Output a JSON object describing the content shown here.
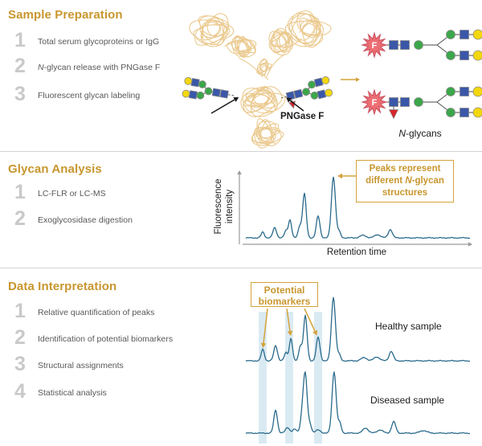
{
  "colors": {
    "heading_gold": "#C8962E",
    "callout_gold": "#D4A33C",
    "step_number_gray": "#C9C9C9",
    "step_text_gray": "#58585A",
    "trace_teal": "#2A6B8C",
    "axis_gray": "#9B9B9B",
    "highlight_band": "#DAEAF2",
    "antibody_tan": "#EBCA90",
    "glcnac_blue": "#3A57A8",
    "mannose_green": "#3CA64A",
    "galactose_yellow": "#F3D70E",
    "fucose_red": "#D8232A",
    "star_pink": "#ED6E73",
    "star_edge": "#C94F5E",
    "arrow_black": "#1A1A1A",
    "text_black": "#1A1A1A"
  },
  "sections": [
    {
      "title": "Sample Preparation",
      "steps": [
        {
          "num": "1",
          "parts": [
            {
              "t": "Total serum glycoproteins or IgG",
              "i": 0
            }
          ]
        },
        {
          "num": "2",
          "parts": [
            {
              "t": "N",
              "i": 1
            },
            {
              "t": "-glycan release with PNGase F",
              "i": 0
            }
          ]
        },
        {
          "num": "3",
          "parts": [
            {
              "t": "Fluorescent glycan labeling",
              "i": 0
            }
          ]
        }
      ]
    },
    {
      "title": "Glycan Analysis",
      "steps": [
        {
          "num": "1",
          "parts": [
            {
              "t": "LC-FLR or LC-MS",
              "i": 0
            }
          ]
        },
        {
          "num": "2",
          "parts": [
            {
              "t": "Exoglycosidase digestion",
              "i": 0
            }
          ]
        }
      ]
    },
    {
      "title": "Data Interpretation",
      "steps": [
        {
          "num": "1",
          "parts": [
            {
              "t": "Relative quantification of peaks",
              "i": 0
            }
          ]
        },
        {
          "num": "2",
          "parts": [
            {
              "t": "Identification of potential biomarkers",
              "i": 0
            }
          ]
        },
        {
          "num": "3",
          "parts": [
            {
              "t": "Structural assignments",
              "i": 0
            }
          ]
        },
        {
          "num": "4",
          "parts": [
            {
              "t": "Statistical analysis",
              "i": 0
            }
          ]
        }
      ]
    }
  ],
  "diagram": {
    "pngase_label": "PNGase F",
    "star_letter": "F",
    "nglycans_n": "N",
    "nglycans_rest": "-glycans"
  },
  "analysis": {
    "ylabel_line1": "Fluorescence",
    "ylabel_line2": "intensity",
    "xlabel": "Retention time",
    "callout_line1": "Peaks represent",
    "callout_line2_pre": "different ",
    "callout_line2_n": "N",
    "callout_line2_post": "-glycan",
    "callout_line3": "structures"
  },
  "interpretation": {
    "callout_line1": "Potential",
    "callout_line2": "biomarkers",
    "healthy_label": "Healthy sample",
    "diseased_label": "Diseased sample"
  },
  "chart_data": [
    {
      "id": "glycan_analysis_chromatogram",
      "type": "line",
      "xlabel": "Retention time",
      "ylabel": "Fluorescence intensity",
      "axes_numeric": false,
      "annotation": "Peaks represent different N-glycan structures (arrow to tallest peak)",
      "peak_format": "[retention_percent_of_axis, height_percent_of_max, width_percent]",
      "peaks": [
        [
          7.9,
          9,
          0.7
        ],
        [
          13.2,
          16,
          0.8
        ],
        [
          18.2,
          11,
          0.7
        ],
        [
          20.0,
          28,
          0.7
        ],
        [
          24.3,
          18,
          0.7
        ],
        [
          26.4,
          69,
          0.8
        ],
        [
          32.5,
          34,
          0.8
        ],
        [
          39.3,
          95,
          0.9
        ],
        [
          41.8,
          10,
          0.7
        ],
        [
          52.5,
          4,
          1.3
        ],
        [
          58.9,
          5,
          1.3
        ],
        [
          64.6,
          13,
          0.9
        ]
      ]
    },
    {
      "id": "healthy_sample_chromatogram",
      "type": "line",
      "label": "Healthy sample",
      "annotation": "Potential biomarkers (three arrows to highlighted peaks)",
      "peak_format": "[retention_percent_of_axis, height_percent_of_max, width_percent]",
      "peaks": [
        [
          7.9,
          18,
          0.7
        ],
        [
          13.6,
          24,
          0.8
        ],
        [
          18.2,
          13,
          0.7
        ],
        [
          20.4,
          35,
          0.7
        ],
        [
          24.6,
          23,
          0.7
        ],
        [
          26.8,
          70,
          0.8
        ],
        [
          32.5,
          37,
          0.8
        ],
        [
          39.3,
          99,
          0.9
        ],
        [
          41.8,
          10,
          0.7
        ],
        [
          52.9,
          5,
          1.3
        ],
        [
          58.6,
          6,
          1.3
        ],
        [
          65.0,
          15,
          0.9
        ]
      ],
      "highlight_bands_percent": [
        [
          6.1,
          9.6
        ],
        [
          17.9,
          21.4
        ],
        [
          30.7,
          34.3
        ]
      ],
      "biomarker_arrow_targets_percent": [
        7.9,
        20.4,
        32.5
      ]
    },
    {
      "id": "diseased_sample_chromatogram",
      "type": "line",
      "label": "Diseased sample",
      "peak_format": "[retention_percent_of_axis, height_percent_of_max, width_percent]",
      "peaks": [
        [
          13.6,
          36,
          0.8
        ],
        [
          18.9,
          9,
          0.9
        ],
        [
          22.1,
          6,
          0.9
        ],
        [
          25.4,
          25,
          0.8
        ],
        [
          26.8,
          89,
          0.85
        ],
        [
          28.9,
          13,
          0.7
        ],
        [
          32.5,
          5,
          1.1
        ],
        [
          39.6,
          96,
          0.9
        ],
        [
          42.1,
          16,
          0.7
        ],
        [
          53.6,
          8,
          1.2
        ],
        [
          60.0,
          5,
          1.3
        ],
        [
          66.1,
          18,
          0.9
        ],
        [
          79.3,
          4,
          1.5
        ]
      ],
      "highlight_bands_percent": [
        [
          6.1,
          9.6
        ],
        [
          17.9,
          21.4
        ],
        [
          30.7,
          34.3
        ]
      ]
    }
  ]
}
